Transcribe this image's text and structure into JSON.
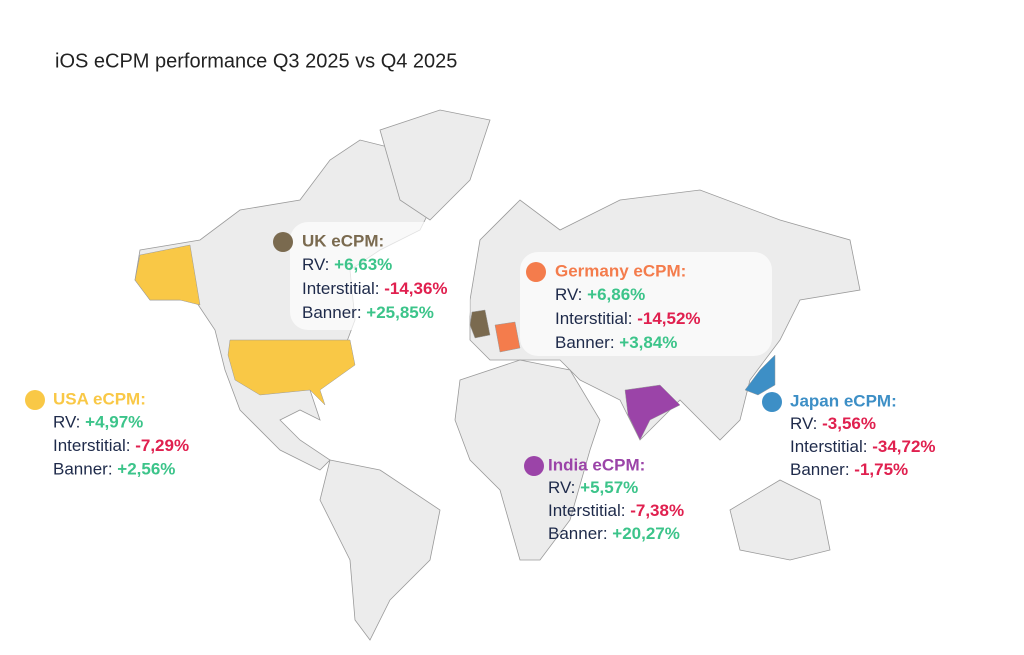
{
  "title": "iOS eCPM performance Q3 2025 vs Q4 2025",
  "regions": [
    {
      "label": "UK eCPM:",
      "color": "#7a6a4f",
      "rows": [
        {
          "label": "RV:",
          "value": "+6,63%"
        },
        {
          "label": "Interstitial:",
          "value": "-14,36%"
        },
        {
          "label": "Banner:",
          "value": "+25,85%"
        }
      ]
    },
    {
      "label": "Germany eCPM:",
      "color": "#f47c4c",
      "rows": [
        {
          "label": "RV:",
          "value": "+6,86%"
        },
        {
          "label": "Interstitial:",
          "value": "-14,52%"
        },
        {
          "label": "Banner:",
          "value": "+3,84%"
        }
      ]
    },
    {
      "label": "USA eCPM:",
      "color": "#f9c846",
      "rows": [
        {
          "label": "RV:",
          "value": "+4,97%"
        },
        {
          "label": "Interstitial:",
          "value": "-7,29%"
        },
        {
          "label": "Banner:",
          "value": "+2,56%"
        }
      ]
    },
    {
      "label": "Japan eCPM:",
      "color": "#3d8fc6",
      "rows": [
        {
          "label": "RV:",
          "value": "-3,56%"
        },
        {
          "label": "Interstitial:",
          "value": "-34,72%"
        },
        {
          "label": "Banner:",
          "value": "-1,75%"
        }
      ]
    },
    {
      "label": "India eCPM:",
      "color": "#9b44a8",
      "rows": [
        {
          "label": "RV:",
          "value": "+5,57%"
        },
        {
          "label": "Interstitial:",
          "value": "-7,38%"
        },
        {
          "label": "Banner:",
          "value": "+20,27%"
        }
      ]
    }
  ]
}
